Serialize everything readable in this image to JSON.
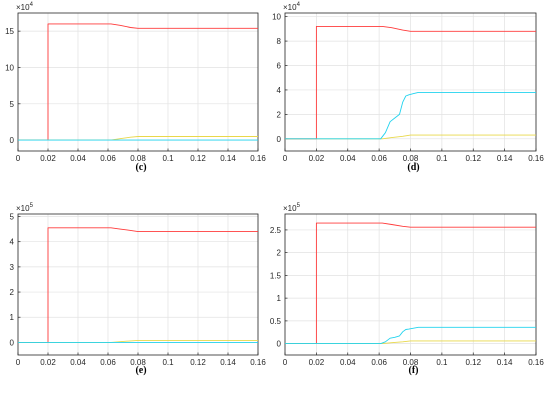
{
  "chart_data": [
    {
      "type": "line",
      "caption": "(c)",
      "multiplier": {
        "base": "×10",
        "exp": "4"
      },
      "xlim": [
        0,
        0.16
      ],
      "ylim": [
        -1.5,
        17.5
      ],
      "xticks": [
        "0",
        "0.02",
        "0.04",
        "0.06",
        "0.08",
        "0.1",
        "0.12",
        "0.14",
        "0.16"
      ],
      "yticks": [
        0,
        5,
        10,
        15
      ],
      "grid": true,
      "series": [
        {
          "color": "#ff3b3b",
          "x": [
            0,
            0.02,
            0.02,
            0.062,
            0.068,
            0.075,
            0.08,
            0.16
          ],
          "y": [
            0,
            0,
            16,
            16,
            15.8,
            15.5,
            15.4,
            15.4
          ]
        },
        {
          "color": "#e8d84a",
          "x": [
            0,
            0.062,
            0.068,
            0.075,
            0.08,
            0.16
          ],
          "y": [
            0,
            0,
            0.2,
            0.4,
            0.5,
            0.5
          ]
        },
        {
          "color": "#22d3ee",
          "x": [
            0,
            0.16
          ],
          "y": [
            0,
            0
          ]
        }
      ]
    },
    {
      "type": "line",
      "caption": "(d)",
      "multiplier": {
        "base": "×10",
        "exp": "4"
      },
      "xlim": [
        0,
        0.16
      ],
      "ylim": [
        -1,
        10.3
      ],
      "xticks": [
        "0",
        "0.02",
        "0.04",
        "0.06",
        "0.08",
        "0.1",
        "0.12",
        "0.14",
        "0.16"
      ],
      "yticks": [
        0,
        2,
        4,
        6,
        8,
        10
      ],
      "grid": true,
      "series": [
        {
          "color": "#ff3b3b",
          "x": [
            0,
            0.02,
            0.02,
            0.062,
            0.068,
            0.075,
            0.08,
            0.16
          ],
          "y": [
            0,
            0,
            9.2,
            9.2,
            9.1,
            8.9,
            8.8,
            8.8
          ]
        },
        {
          "color": "#e8d84a",
          "x": [
            0,
            0.062,
            0.068,
            0.075,
            0.08,
            0.16
          ],
          "y": [
            0,
            0,
            0.1,
            0.2,
            0.3,
            0.3
          ]
        },
        {
          "color": "#22d3ee",
          "x": [
            0,
            0.061,
            0.064,
            0.067,
            0.07,
            0.073,
            0.075,
            0.077,
            0.079,
            0.082,
            0.085,
            0.09,
            0.16
          ],
          "y": [
            0,
            0,
            0.5,
            1.4,
            1.7,
            2.0,
            3.0,
            3.5,
            3.6,
            3.7,
            3.8,
            3.8,
            3.8
          ]
        }
      ]
    },
    {
      "type": "line",
      "caption": "(e)",
      "multiplier": {
        "base": "×10",
        "exp": "5"
      },
      "xlim": [
        0,
        0.16
      ],
      "ylim": [
        -0.5,
        5.1
      ],
      "xticks": [
        "0",
        "0.02",
        "0.04",
        "0.06",
        "0.08",
        "0.1",
        "0.12",
        "0.14",
        "0.16"
      ],
      "yticks": [
        0,
        1,
        2,
        3,
        4,
        5
      ],
      "grid": true,
      "series": [
        {
          "color": "#ff3b3b",
          "x": [
            0,
            0.02,
            0.02,
            0.062,
            0.068,
            0.075,
            0.08,
            0.16
          ],
          "y": [
            0,
            0,
            4.55,
            4.55,
            4.5,
            4.45,
            4.4,
            4.4
          ]
        },
        {
          "color": "#e8d84a",
          "x": [
            0,
            0.062,
            0.068,
            0.075,
            0.08,
            0.16
          ],
          "y": [
            0,
            0,
            0.03,
            0.06,
            0.08,
            0.08
          ]
        },
        {
          "color": "#22d3ee",
          "x": [
            0,
            0.16
          ],
          "y": [
            0,
            0
          ]
        }
      ]
    },
    {
      "type": "line",
      "caption": "(f)",
      "multiplier": {
        "base": "×10",
        "exp": "5"
      },
      "xlim": [
        0,
        0.16
      ],
      "ylim": [
        -0.25,
        2.85
      ],
      "xticks": [
        "0",
        "0.02",
        "0.04",
        "0.06",
        "0.08",
        "0.1",
        "0.12",
        "0.14",
        "0.16"
      ],
      "yticks": [
        0,
        0.5,
        1,
        1.5,
        2,
        2.5
      ],
      "ytick_labels": [
        "0",
        "0.5",
        "1",
        "1.5",
        "2",
        "2.5"
      ],
      "grid": true,
      "series": [
        {
          "color": "#ff3b3b",
          "x": [
            0,
            0.02,
            0.02,
            0.062,
            0.068,
            0.075,
            0.08,
            0.16
          ],
          "y": [
            0,
            0,
            2.65,
            2.65,
            2.62,
            2.58,
            2.56,
            2.56
          ]
        },
        {
          "color": "#e8d84a",
          "x": [
            0,
            0.062,
            0.068,
            0.075,
            0.08,
            0.16
          ],
          "y": [
            0,
            0,
            0.02,
            0.04,
            0.06,
            0.06
          ]
        },
        {
          "color": "#22d3ee",
          "x": [
            0,
            0.061,
            0.064,
            0.067,
            0.07,
            0.073,
            0.075,
            0.077,
            0.079,
            0.082,
            0.085,
            0.09,
            0.16
          ],
          "y": [
            0,
            0,
            0.04,
            0.12,
            0.14,
            0.17,
            0.26,
            0.31,
            0.32,
            0.34,
            0.36,
            0.36,
            0.36
          ]
        }
      ]
    }
  ]
}
